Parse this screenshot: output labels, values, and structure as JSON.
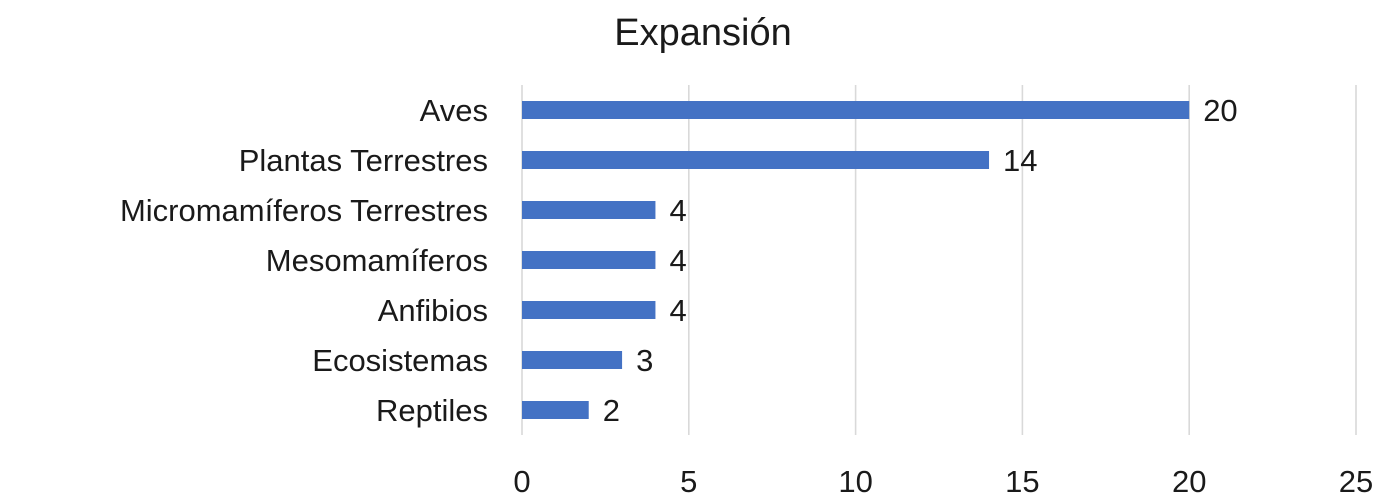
{
  "chart_data": {
    "type": "bar",
    "orientation": "horizontal",
    "title": "Expansión",
    "xlabel": "",
    "ylabel": "",
    "categories": [
      "Aves",
      "Plantas Terrestres",
      "Micromamíferos Terrestres",
      "Mesomamíferos",
      "Anfibios",
      "Ecosistemas",
      "Reptiles"
    ],
    "values": [
      20,
      14,
      4,
      4,
      4,
      3,
      2
    ],
    "xlim": [
      0,
      25
    ],
    "xticks": [
      0,
      5,
      10,
      15,
      20,
      25
    ],
    "grid": "vertical",
    "data_labels": true,
    "legend": "none",
    "colors": {
      "bar": "#4472c4",
      "grid": "#d9d9d9",
      "text": "#1a1a1a"
    }
  }
}
